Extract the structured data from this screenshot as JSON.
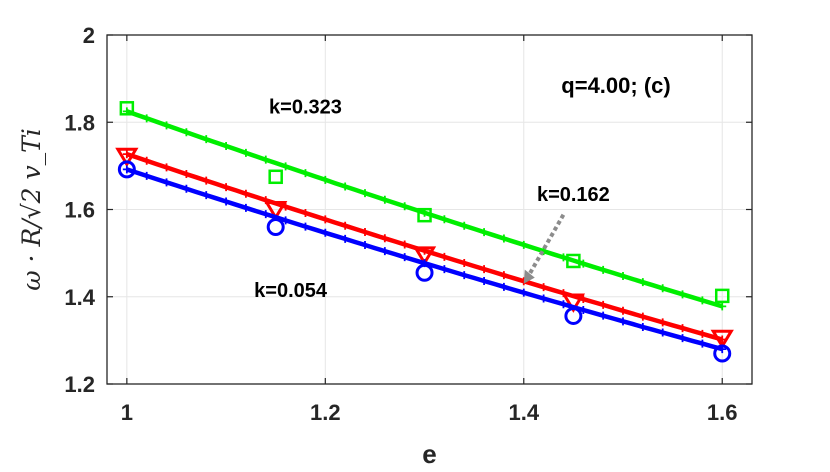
{
  "chart_data": {
    "type": "line",
    "title": "",
    "xlabel": "e",
    "ylabel": "ω · R/√2 v_Ti",
    "xlim": [
      0.98,
      1.63
    ],
    "ylim": [
      1.2,
      2.0
    ],
    "x_ticks": [
      "1",
      "1.2",
      "1.4",
      "1.6"
    ],
    "y_ticks": [
      "1.2",
      "1.4",
      "1.6",
      "1.8",
      "2"
    ],
    "grid": true,
    "panel_label": "q=4.00; (c)",
    "x": [
      1.0,
      1.15,
      1.3,
      1.45,
      1.6
    ],
    "series": [
      {
        "color": "#00ee00",
        "marker": "square",
        "line_start": 1.825,
        "line_end": 1.378,
        "values": [
          1.832,
          1.675,
          1.587,
          1.482,
          1.402
        ]
      },
      {
        "color": "#ff0000",
        "marker": "triangle-down",
        "line_start": 1.727,
        "line_end": 1.302,
        "values": [
          1.722,
          1.6,
          1.496,
          1.388,
          1.305
        ]
      },
      {
        "color": "#0000ff",
        "marker": "circle",
        "line_start": 1.692,
        "line_end": 1.28,
        "values": [
          1.692,
          1.56,
          1.455,
          1.356,
          1.27
        ]
      }
    ],
    "annotations": [
      {
        "text": "k=0.323",
        "x": 1.18,
        "y": 1.82
      },
      {
        "text": "k=0.162",
        "x": 1.45,
        "y": 1.62,
        "arrow_to": [
          1.4,
          1.43
        ]
      },
      {
        "text": "k=0.054",
        "x": 1.165,
        "y": 1.4
      }
    ]
  }
}
